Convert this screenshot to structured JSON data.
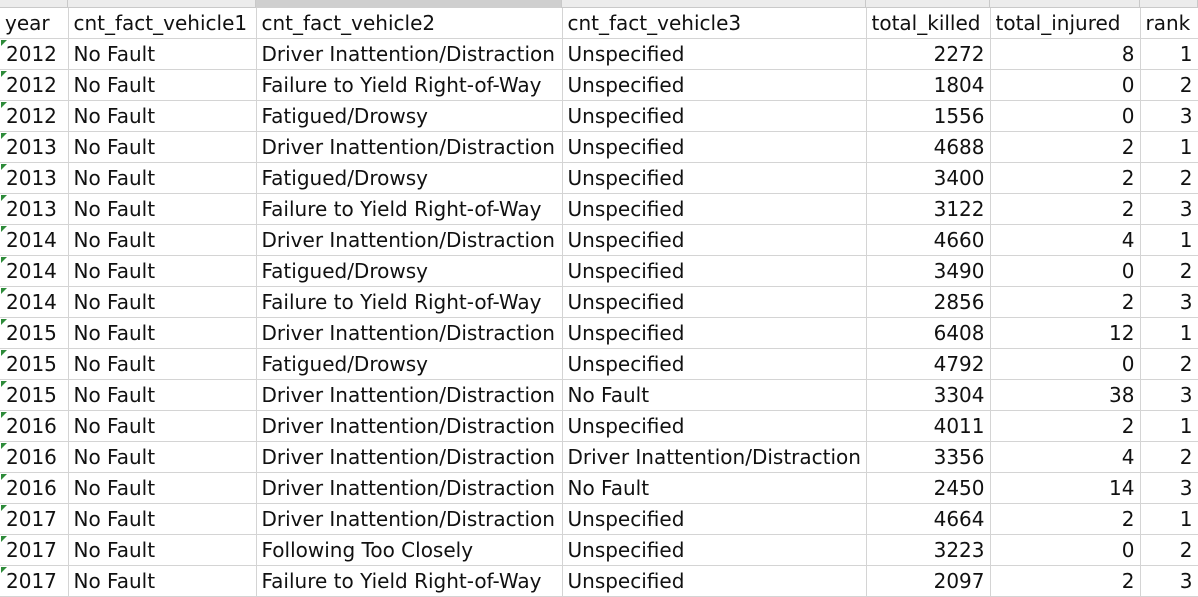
{
  "headers": [
    "year",
    "cnt_fact_vehicle1",
    "cnt_fact_vehicle2",
    "cnt_fact_vehicle3",
    "total_killed",
    "total_injured",
    "rank"
  ],
  "rows": [
    [
      "2012",
      "No Fault",
      "Driver Inattention/Distraction",
      "Unspecified",
      "2272",
      "8",
      "1"
    ],
    [
      "2012",
      "No Fault",
      "Failure to Yield Right-of-Way",
      "Unspecified",
      "1804",
      "0",
      "2"
    ],
    [
      "2012",
      "No Fault",
      "Fatigued/Drowsy",
      "Unspecified",
      "1556",
      "0",
      "3"
    ],
    [
      "2013",
      "No Fault",
      "Driver Inattention/Distraction",
      "Unspecified",
      "4688",
      "2",
      "1"
    ],
    [
      "2013",
      "No Fault",
      "Fatigued/Drowsy",
      "Unspecified",
      "3400",
      "2",
      "2"
    ],
    [
      "2013",
      "No Fault",
      "Failure to Yield Right-of-Way",
      "Unspecified",
      "3122",
      "2",
      "3"
    ],
    [
      "2014",
      "No Fault",
      "Driver Inattention/Distraction",
      "Unspecified",
      "4660",
      "4",
      "1"
    ],
    [
      "2014",
      "No Fault",
      "Fatigued/Drowsy",
      "Unspecified",
      "3490",
      "0",
      "2"
    ],
    [
      "2014",
      "No Fault",
      "Failure to Yield Right-of-Way",
      "Unspecified",
      "2856",
      "2",
      "3"
    ],
    [
      "2015",
      "No Fault",
      "Driver Inattention/Distraction",
      "Unspecified",
      "6408",
      "12",
      "1"
    ],
    [
      "2015",
      "No Fault",
      "Fatigued/Drowsy",
      "Unspecified",
      "4792",
      "0",
      "2"
    ],
    [
      "2015",
      "No Fault",
      "Driver Inattention/Distraction",
      "No Fault",
      "3304",
      "38",
      "3"
    ],
    [
      "2016",
      "No Fault",
      "Driver Inattention/Distraction",
      "Unspecified",
      "4011",
      "2",
      "1"
    ],
    [
      "2016",
      "No Fault",
      "Driver Inattention/Distraction",
      "Driver Inattention/Distraction",
      "3356",
      "4",
      "2"
    ],
    [
      "2016",
      "No Fault",
      "Driver Inattention/Distraction",
      "No Fault",
      "2450",
      "14",
      "3"
    ],
    [
      "2017",
      "No Fault",
      "Driver Inattention/Distraction",
      "Unspecified",
      "4664",
      "2",
      "1"
    ],
    [
      "2017",
      "No Fault",
      "Following Too Closely",
      "Unspecified",
      "3223",
      "0",
      "2"
    ],
    [
      "2017",
      "No Fault",
      "Failure to Yield Right-of-Way",
      "Unspecified",
      "2097",
      "2",
      "3"
    ]
  ],
  "colors": {
    "grid": "#d4d4d4",
    "header_bg": "#ececec",
    "selected_column_header": "#cfcfcf",
    "number_stored_as_text_flag": "#2e8b3a"
  }
}
